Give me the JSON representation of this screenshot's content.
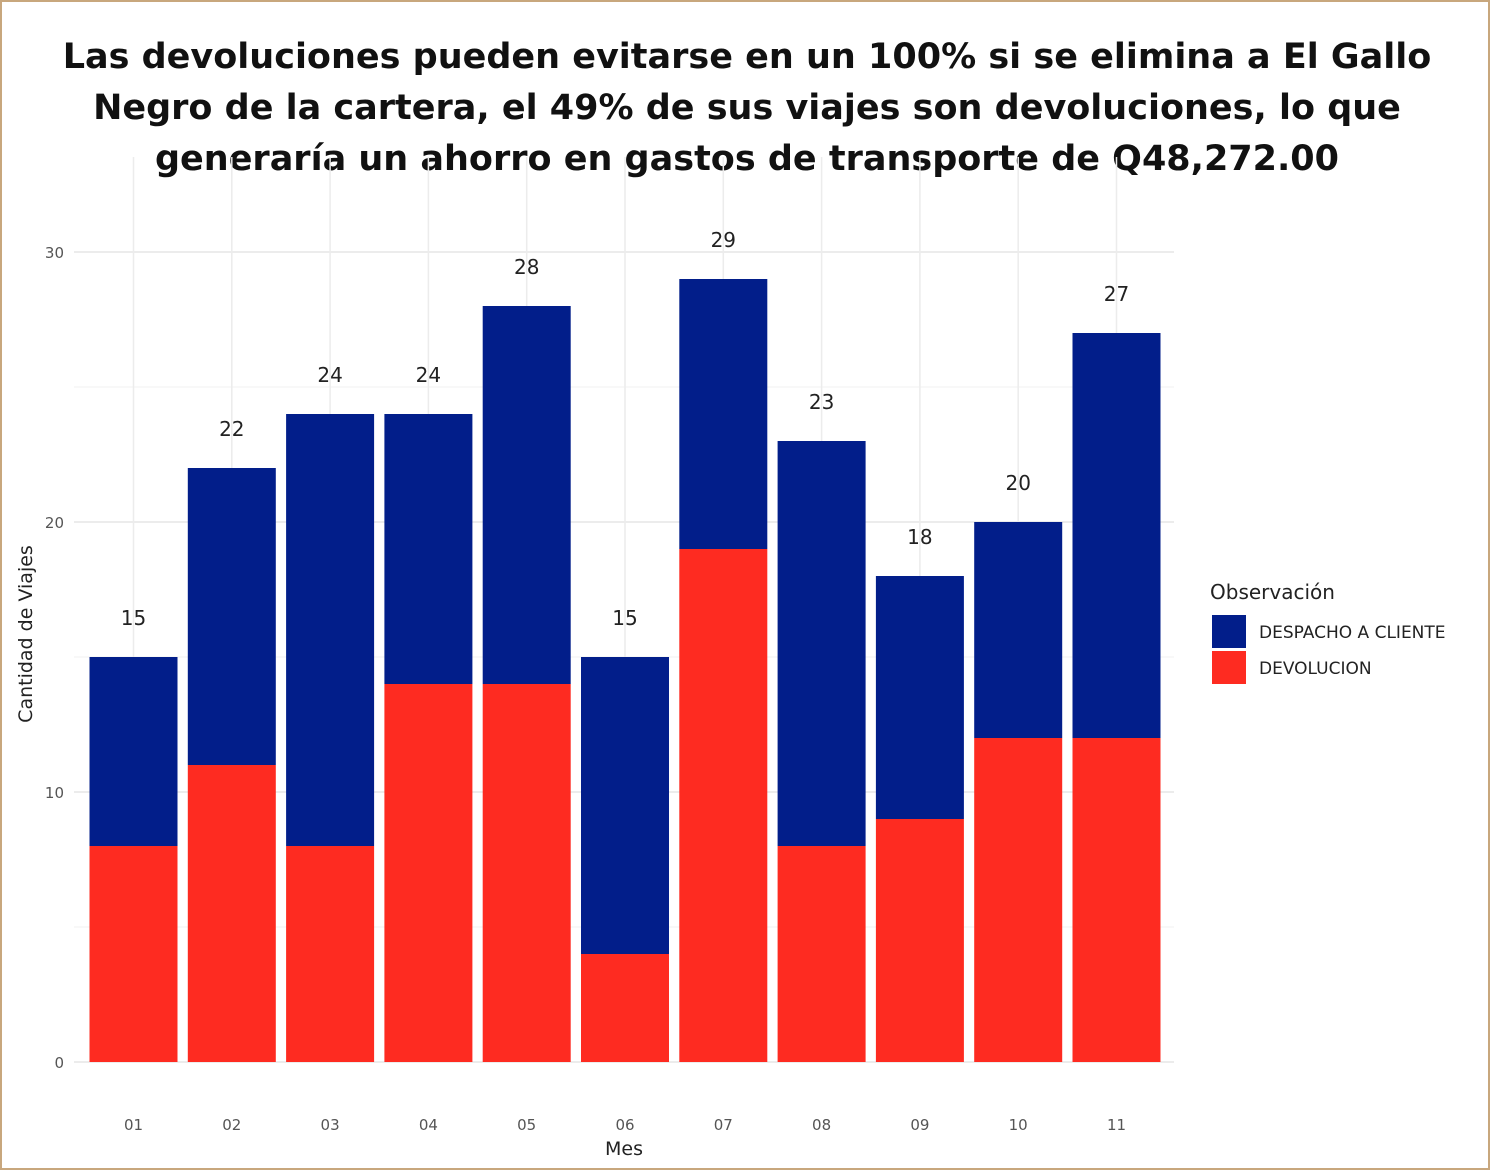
{
  "chart_data": {
    "type": "bar",
    "stacked": true,
    "title": "Las devoluciones pueden evitarse en un 100% si se elimina a El Gallo Negro de la cartera, el 49% de sus viajes son devoluciones, lo que generaría un ahorro en gastos de transporte de Q48,272.00",
    "xlabel": "Mes",
    "ylabel": "Cantidad de Viajes",
    "ylim": [
      0,
      30
    ],
    "yticks": [
      "0",
      "10",
      "20",
      "30"
    ],
    "grid": true,
    "categories": [
      "01",
      "02",
      "03",
      "04",
      "05",
      "06",
      "07",
      "08",
      "09",
      "10",
      "11"
    ],
    "series": [
      {
        "name": "DEVOLUCION",
        "color": "#fe2b21",
        "values": [
          8,
          11,
          8,
          14,
          14,
          4,
          19,
          8,
          9,
          12,
          12
        ]
      },
      {
        "name": "DESPACHO A CLIENTE",
        "color": "#021e8a",
        "values": [
          7,
          11,
          16,
          10,
          14,
          11,
          10,
          15,
          9,
          8,
          15
        ]
      }
    ],
    "totals": [
      "15",
      "22",
      "24",
      "24",
      "28",
      "15",
      "29",
      "23",
      "18",
      "20",
      "27"
    ],
    "legend": {
      "title": "Observación",
      "position": "right",
      "items": [
        "DESPACHO A CLIENTE",
        "DEVOLUCION"
      ]
    }
  }
}
